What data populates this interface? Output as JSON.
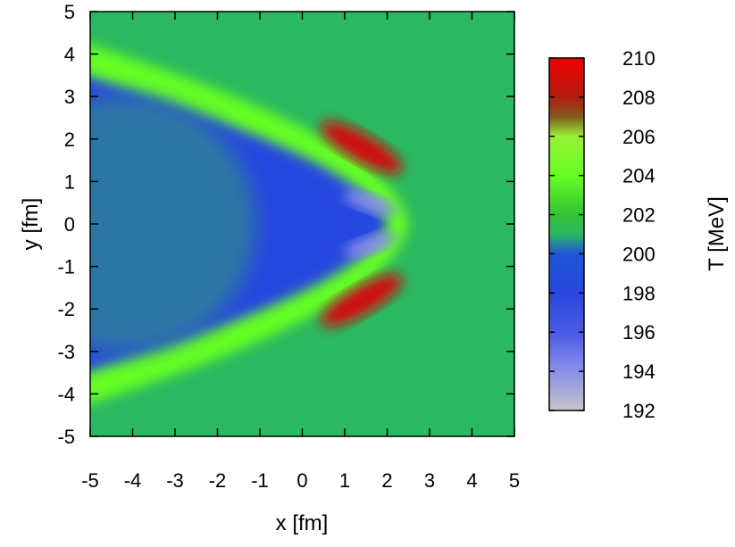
{
  "chart_data": {
    "type": "heatmap",
    "title": "",
    "xlabel": "x [fm]",
    "ylabel": "y [fm]",
    "xlim": [
      -5,
      5
    ],
    "ylim": [
      -5,
      5
    ],
    "x_ticks": [
      "-5",
      "-4",
      "-3",
      "-2",
      "-1",
      "0",
      "1",
      "2",
      "3",
      "4",
      "5"
    ],
    "y_ticks": [
      "-5",
      "-4",
      "-3",
      "-2",
      "-1",
      "0",
      "1",
      "2",
      "3",
      "4",
      "5"
    ],
    "colorbar": {
      "label": "T [MeV]",
      "range": [
        192,
        210
      ],
      "ticks": [
        "192",
        "194",
        "196",
        "198",
        "200",
        "202",
        "204",
        "206",
        "208",
        "210"
      ],
      "colors": [
        {
          "value": 192,
          "color": "#c4c4c8"
        },
        {
          "value": 194,
          "color": "#8a90e8"
        },
        {
          "value": 196,
          "color": "#4a5ae6"
        },
        {
          "value": 198,
          "color": "#2846e0"
        },
        {
          "value": 200,
          "color": "#1f55d8"
        },
        {
          "value": 201,
          "color": "#2ab860"
        },
        {
          "value": 202,
          "color": "#33c233"
        },
        {
          "value": 204,
          "color": "#66ff22"
        },
        {
          "value": 206,
          "color": "#99f033"
        },
        {
          "value": 207,
          "color": "#7f5a1e"
        },
        {
          "value": 208,
          "color": "#b21c10"
        },
        {
          "value": 210,
          "color": "#ee0000"
        }
      ]
    },
    "background_value": 201,
    "features": [
      {
        "name": "hot shell",
        "shape": "arc",
        "center": [
          -2.5,
          0.0
        ],
        "radius_x": 5.0,
        "radius_y": 4.3,
        "width": 0.5,
        "value": 204
      },
      {
        "name": "cool interior",
        "shape": "region",
        "value": 198
      },
      {
        "name": "inner core",
        "shape": "region",
        "value": 200
      },
      {
        "name": "hot spot upper",
        "center": [
          1.4,
          1.8
        ],
        "value": 209
      },
      {
        "name": "hot spot lower",
        "center": [
          1.4,
          -1.8
        ],
        "value": 209
      },
      {
        "name": "cold spot upper",
        "center": [
          1.6,
          0.5
        ],
        "value": 194
      },
      {
        "name": "cold spot lower",
        "center": [
          1.6,
          -0.5
        ],
        "value": 194
      }
    ]
  }
}
